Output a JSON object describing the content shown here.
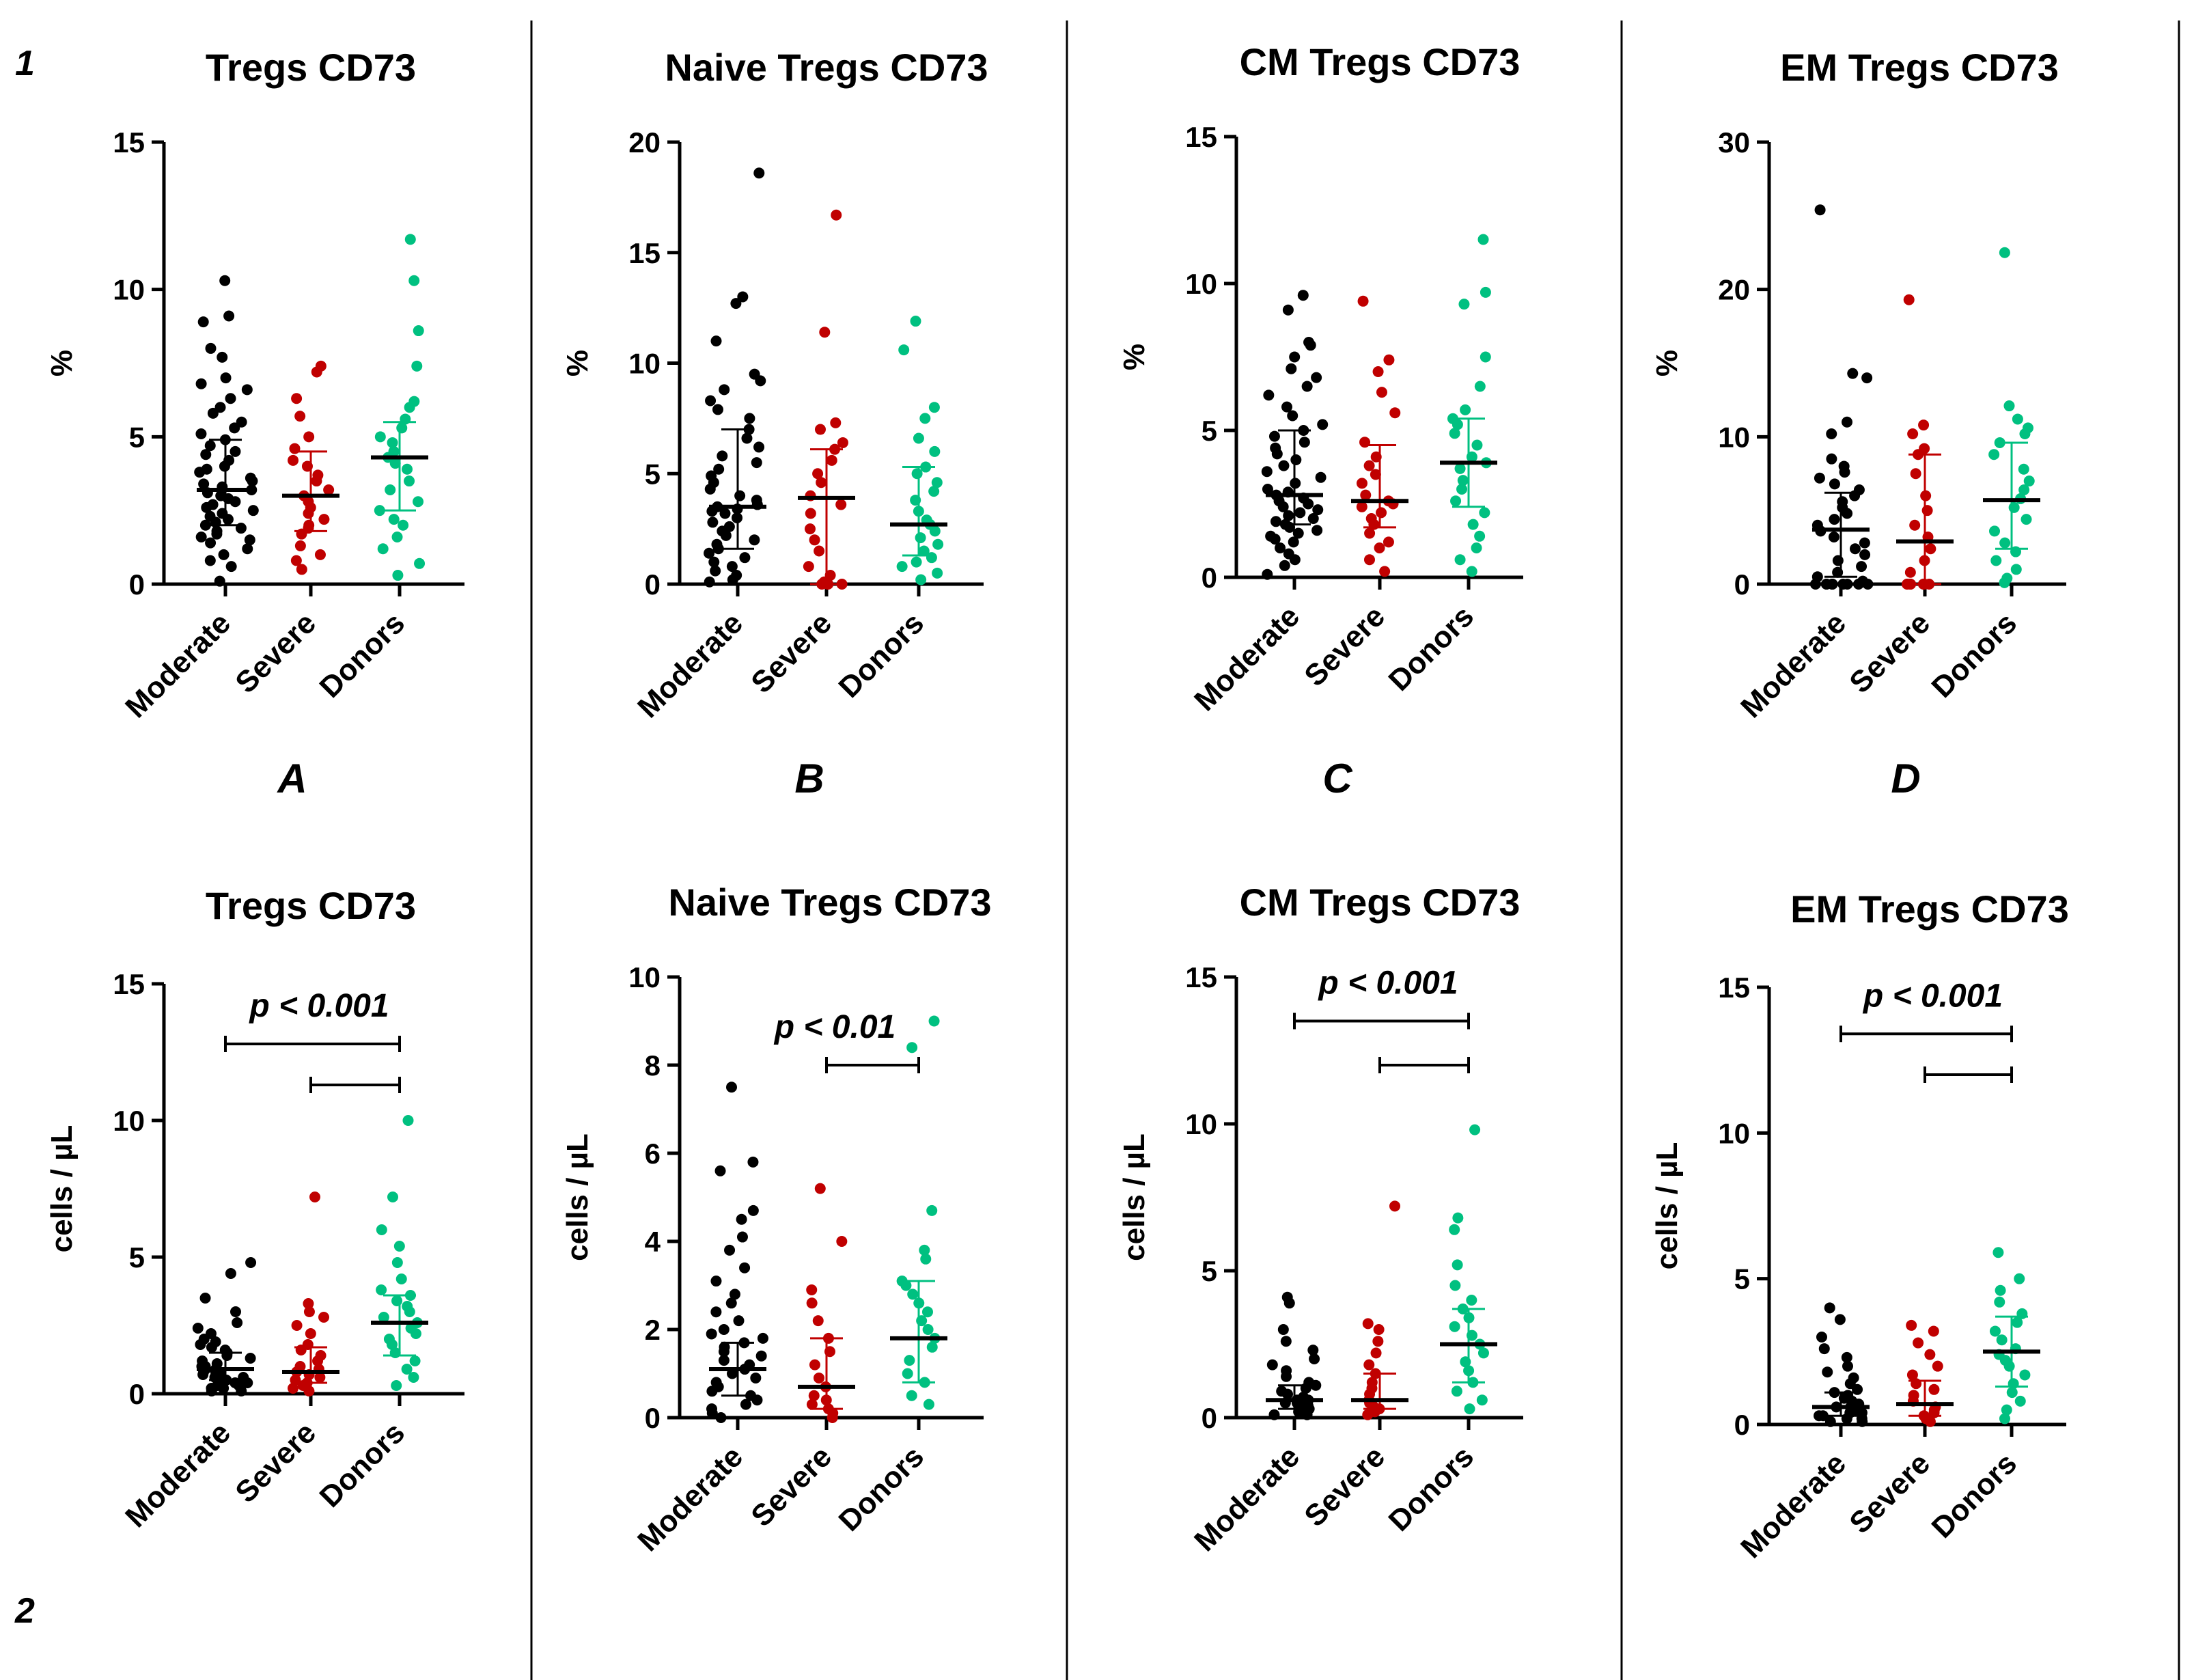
{
  "figure": {
    "row_labels": [
      "1",
      "2"
    ],
    "panel_letters": [
      "A",
      "B",
      "C",
      "D"
    ]
  },
  "colors": {
    "Moderate": "#000000",
    "Severe": "#c00000",
    "Donors": "#00c080",
    "axis": "#000000"
  },
  "chart_data": [
    {
      "type": "scatter",
      "title": "Tregs CD73",
      "ylabel": "%",
      "categories": [
        "Moderate",
        "Severe",
        "Donors"
      ],
      "ylim": [
        0,
        15
      ],
      "yticks": [
        0,
        5,
        10,
        15
      ],
      "series": [
        {
          "name": "Moderate",
          "median": 3.2,
          "q1": 2.0,
          "q3": 4.9,
          "values": [
            10.3,
            9.1,
            8.9,
            8.0,
            7.7,
            7.0,
            6.8,
            6.6,
            6.3,
            6.0,
            5.8,
            5.5,
            5.3,
            5.1,
            4.9,
            4.7,
            4.5,
            4.4,
            4.2,
            4.0,
            3.9,
            3.8,
            3.6,
            3.5,
            3.4,
            3.3,
            3.2,
            3.1,
            3.0,
            2.9,
            2.8,
            2.7,
            2.6,
            2.5,
            2.4,
            2.3,
            2.2,
            2.1,
            2.0,
            1.9,
            1.8,
            1.7,
            1.6,
            1.5,
            1.4,
            1.2,
            1.0,
            0.8,
            0.6,
            0.1
          ]
        },
        {
          "name": "Severe",
          "median": 3.0,
          "q1": 1.8,
          "q3": 4.5,
          "values": [
            7.4,
            7.2,
            6.3,
            5.7,
            5.0,
            4.6,
            4.2,
            4.0,
            3.7,
            3.5,
            3.2,
            3.0,
            2.8,
            2.6,
            2.4,
            2.2,
            2.0,
            1.9,
            1.7,
            1.3,
            1.0,
            0.8,
            0.5
          ]
        },
        {
          "name": "Donors",
          "median": 4.3,
          "q1": 2.5,
          "q3": 5.5,
          "values": [
            11.7,
            10.3,
            8.6,
            7.4,
            6.2,
            6.0,
            5.6,
            5.3,
            5.0,
            4.8,
            4.5,
            4.3,
            4.1,
            3.9,
            3.5,
            3.2,
            2.8,
            2.5,
            2.2,
            2.0,
            1.6,
            1.2,
            0.7,
            0.3
          ]
        }
      ],
      "annotation": {
        "text": "",
        "brackets": []
      }
    },
    {
      "type": "scatter",
      "title": "Naive Tregs CD73",
      "ylabel": "%",
      "categories": [
        "Moderate",
        "Severe",
        "Donors"
      ],
      "ylim": [
        0,
        20
      ],
      "yticks": [
        0,
        5,
        10,
        15,
        20
      ],
      "series": [
        {
          "name": "Moderate",
          "median": 3.5,
          "q1": 1.6,
          "q3": 7.0,
          "values": [
            18.6,
            13.0,
            12.7,
            11.0,
            9.5,
            9.2,
            8.8,
            8.3,
            7.9,
            7.5,
            7.0,
            6.6,
            6.2,
            5.8,
            5.5,
            5.2,
            4.9,
            4.6,
            4.3,
            4.0,
            3.8,
            3.6,
            3.5,
            3.4,
            3.3,
            3.2,
            3.0,
            2.8,
            2.6,
            2.4,
            2.2,
            2.0,
            1.8,
            1.6,
            1.4,
            1.2,
            1.0,
            0.8,
            0.6,
            0.4,
            0.2,
            0.1
          ]
        },
        {
          "name": "Severe",
          "median": 3.9,
          "q1": 0.0,
          "q3": 6.1,
          "values": [
            16.7,
            11.4,
            7.3,
            7.0,
            6.4,
            6.1,
            5.6,
            5.0,
            4.6,
            4.0,
            3.6,
            3.2,
            2.5,
            2.0,
            1.5,
            0.8,
            0.4,
            0.1,
            0.0,
            0.0,
            0.0,
            0.0
          ]
        },
        {
          "name": "Donors",
          "median": 2.7,
          "q1": 1.3,
          "q3": 5.3,
          "values": [
            11.9,
            10.6,
            8.0,
            7.5,
            6.6,
            6.0,
            5.3,
            5.0,
            4.6,
            4.2,
            3.8,
            3.3,
            2.9,
            2.7,
            2.4,
            2.1,
            1.8,
            1.5,
            1.2,
            1.0,
            0.8,
            0.5,
            0.2
          ]
        }
      ],
      "annotation": {
        "text": "",
        "brackets": []
      }
    },
    {
      "type": "scatter",
      "title": "CM Tregs CD73",
      "ylabel": "%",
      "categories": [
        "Moderate",
        "Severe",
        "Donors"
      ],
      "ylim": [
        0,
        15
      ],
      "yticks": [
        0,
        5,
        10,
        15
      ],
      "series": [
        {
          "name": "Moderate",
          "median": 2.8,
          "q1": 1.8,
          "q3": 5.0,
          "values": [
            9.6,
            9.1,
            8.0,
            7.9,
            7.5,
            7.1,
            6.8,
            6.5,
            6.2,
            5.8,
            5.5,
            5.2,
            5.0,
            4.8,
            4.6,
            4.4,
            4.2,
            4.0,
            3.8,
            3.6,
            3.4,
            3.2,
            3.0,
            2.9,
            2.8,
            2.7,
            2.6,
            2.5,
            2.4,
            2.3,
            2.2,
            2.1,
            2.0,
            1.9,
            1.8,
            1.7,
            1.6,
            1.5,
            1.4,
            1.3,
            1.2,
            1.0,
            0.8,
            0.6,
            0.4,
            0.1
          ]
        },
        {
          "name": "Severe",
          "median": 2.6,
          "q1": 1.7,
          "q3": 4.5,
          "values": [
            9.4,
            7.4,
            7.0,
            6.3,
            5.6,
            4.6,
            4.1,
            3.8,
            3.5,
            3.2,
            2.8,
            2.6,
            2.5,
            2.4,
            2.2,
            2.0,
            1.8,
            1.5,
            1.2,
            1.0,
            0.6,
            0.2
          ]
        },
        {
          "name": "Donors",
          "median": 3.9,
          "q1": 2.4,
          "q3": 5.4,
          "values": [
            11.5,
            9.7,
            9.3,
            7.5,
            6.5,
            5.7,
            5.4,
            5.2,
            4.9,
            4.5,
            4.1,
            3.9,
            3.7,
            3.3,
            3.0,
            2.6,
            2.2,
            1.8,
            1.4,
            1.0,
            0.6,
            0.2
          ]
        }
      ],
      "annotation": {
        "text": "",
        "brackets": []
      }
    },
    {
      "type": "scatter",
      "title": "EM Tregs CD73",
      "ylabel": "%",
      "categories": [
        "Moderate",
        "Severe",
        "Donors"
      ],
      "ylim": [
        0,
        30
      ],
      "yticks": [
        0,
        10,
        20,
        30
      ],
      "series": [
        {
          "name": "Moderate",
          "median": 3.7,
          "q1": 0.5,
          "q3": 6.2,
          "values": [
            25.4,
            14.3,
            14.0,
            11.0,
            10.2,
            8.5,
            8.0,
            7.6,
            7.2,
            6.8,
            6.4,
            6.0,
            5.6,
            5.2,
            4.8,
            4.4,
            4.0,
            3.6,
            3.2,
            2.8,
            2.4,
            2.0,
            1.6,
            1.2,
            0.8,
            0.5,
            0.2,
            0.0,
            0.0,
            0.0,
            0.0,
            0.0,
            0.0,
            0.0,
            0.0,
            0.0,
            0.0
          ]
        },
        {
          "name": "Severe",
          "median": 2.9,
          "q1": 0.0,
          "q3": 8.8,
          "values": [
            19.3,
            10.8,
            10.2,
            9.2,
            8.8,
            7.5,
            6.0,
            5.0,
            4.0,
            3.2,
            2.4,
            1.6,
            0.8,
            0.0,
            0.0,
            0.0,
            0.0,
            0.0,
            0.0,
            0.0
          ]
        },
        {
          "name": "Donors",
          "median": 5.7,
          "q1": 2.4,
          "q3": 9.6,
          "values": [
            22.5,
            12.1,
            11.2,
            10.6,
            10.2,
            9.6,
            8.8,
            7.8,
            7.0,
            6.4,
            5.8,
            5.2,
            4.4,
            3.6,
            2.8,
            2.2,
            1.6,
            1.0,
            0.4,
            0.1
          ]
        }
      ],
      "annotation": {
        "text": "",
        "brackets": []
      }
    },
    {
      "type": "scatter",
      "title": "Tregs CD73",
      "ylabel": "cells  /  µL",
      "categories": [
        "Moderate",
        "Severe",
        "Donors"
      ],
      "ylim": [
        0,
        15
      ],
      "yticks": [
        0,
        5,
        10,
        15
      ],
      "dotted_baseline": true,
      "series": [
        {
          "name": "Moderate",
          "median": 0.9,
          "q1": 0.5,
          "q3": 1.5,
          "values": [
            4.8,
            4.4,
            3.5,
            3.0,
            2.6,
            2.4,
            2.2,
            2.0,
            1.9,
            1.8,
            1.7,
            1.6,
            1.5,
            1.4,
            1.3,
            1.2,
            1.1,
            1.0,
            1.0,
            0.9,
            0.9,
            0.8,
            0.8,
            0.7,
            0.7,
            0.6,
            0.6,
            0.5,
            0.5,
            0.4,
            0.4,
            0.3,
            0.3,
            0.2,
            0.2,
            0.1,
            0.1
          ]
        },
        {
          "name": "Severe",
          "median": 0.8,
          "q1": 0.4,
          "q3": 1.7,
          "values": [
            7.2,
            3.3,
            3.0,
            2.8,
            2.5,
            2.2,
            1.8,
            1.6,
            1.4,
            1.2,
            1.0,
            0.9,
            0.8,
            0.7,
            0.6,
            0.5,
            0.4,
            0.3,
            0.2,
            0.1
          ]
        },
        {
          "name": "Donors",
          "median": 2.6,
          "q1": 1.4,
          "q3": 3.6,
          "values": [
            10.0,
            7.2,
            6.0,
            5.4,
            4.8,
            4.2,
            3.8,
            3.6,
            3.4,
            3.2,
            3.0,
            2.8,
            2.6,
            2.4,
            2.2,
            2.0,
            1.8,
            1.5,
            1.2,
            0.9,
            0.6,
            0.3
          ]
        }
      ],
      "annotation": {
        "text": "p < 0.001",
        "brackets": [
          {
            "from": "Moderate",
            "to": "Donors",
            "y": 12.8
          },
          {
            "from": "Severe",
            "to": "Donors",
            "y": 11.3
          }
        ]
      }
    },
    {
      "type": "scatter",
      "title": "Naive Tregs CD73",
      "ylabel": "cells  /  µL",
      "categories": [
        "Moderate",
        "Severe",
        "Donors"
      ],
      "ylim": [
        0,
        10
      ],
      "yticks": [
        0,
        2,
        4,
        6,
        8,
        10
      ],
      "series": [
        {
          "name": "Moderate",
          "median": 1.1,
          "q1": 0.5,
          "q3": 1.7,
          "values": [
            7.5,
            5.8,
            5.6,
            4.7,
            4.5,
            4.1,
            3.8,
            3.4,
            3.1,
            2.8,
            2.6,
            2.4,
            2.2,
            2.0,
            1.9,
            1.8,
            1.7,
            1.6,
            1.5,
            1.4,
            1.3,
            1.2,
            1.1,
            1.0,
            0.9,
            0.8,
            0.7,
            0.6,
            0.5,
            0.4,
            0.3,
            0.2,
            0.1,
            0.0
          ]
        },
        {
          "name": "Severe",
          "median": 0.7,
          "q1": 0.2,
          "q3": 1.8,
          "values": [
            5.2,
            4.0,
            2.9,
            2.6,
            2.2,
            1.8,
            1.5,
            1.2,
            0.9,
            0.7,
            0.5,
            0.4,
            0.3,
            0.2,
            0.1,
            0.0
          ]
        },
        {
          "name": "Donors",
          "median": 1.8,
          "q1": 0.8,
          "q3": 3.1,
          "values": [
            9.0,
            8.4,
            4.7,
            3.8,
            3.6,
            3.1,
            3.0,
            2.8,
            2.6,
            2.4,
            2.2,
            2.0,
            1.8,
            1.6,
            1.3,
            1.0,
            0.8,
            0.5,
            0.3
          ]
        }
      ],
      "annotation": {
        "text": "p < 0.01",
        "brackets": [
          {
            "from": "Severe",
            "to": "Donors",
            "y": 8.0
          }
        ]
      }
    },
    {
      "type": "scatter",
      "title": "CM Tregs CD73",
      "ylabel": "cells  /  µL",
      "categories": [
        "Moderate",
        "Severe",
        "Donors"
      ],
      "ylim": [
        0,
        15
      ],
      "yticks": [
        0,
        5,
        10,
        15
      ],
      "series": [
        {
          "name": "Moderate",
          "median": 0.6,
          "q1": 0.3,
          "q3": 1.1,
          "values": [
            4.1,
            3.9,
            3.0,
            2.6,
            2.3,
            2.0,
            1.8,
            1.6,
            1.4,
            1.2,
            1.1,
            1.0,
            0.9,
            0.8,
            0.7,
            0.6,
            0.6,
            0.5,
            0.5,
            0.4,
            0.4,
            0.3,
            0.3,
            0.2,
            0.2,
            0.1,
            0.1
          ]
        },
        {
          "name": "Severe",
          "median": 0.6,
          "q1": 0.3,
          "q3": 1.5,
          "values": [
            7.2,
            3.2,
            3.0,
            2.6,
            2.2,
            1.8,
            1.5,
            1.2,
            1.0,
            0.8,
            0.6,
            0.5,
            0.4,
            0.3,
            0.2,
            0.1
          ]
        },
        {
          "name": "Donors",
          "median": 2.5,
          "q1": 1.2,
          "q3": 3.7,
          "values": [
            9.8,
            6.8,
            6.4,
            5.2,
            4.5,
            4.0,
            3.7,
            3.4,
            3.1,
            2.8,
            2.5,
            2.2,
            1.9,
            1.6,
            1.2,
            0.9,
            0.6,
            0.3
          ]
        }
      ],
      "annotation": {
        "text": "p < 0.001",
        "brackets": [
          {
            "from": "Moderate",
            "to": "Donors",
            "y": 13.5
          },
          {
            "from": "Severe",
            "to": "Donors",
            "y": 12.0
          }
        ]
      }
    },
    {
      "type": "scatter",
      "title": "EM Tregs CD73",
      "ylabel": "cells  /  µL",
      "categories": [
        "Moderate",
        "Severe",
        "Donors"
      ],
      "ylim": [
        0,
        15
      ],
      "yticks": [
        0,
        5,
        10,
        15
      ],
      "series": [
        {
          "name": "Moderate",
          "median": 0.6,
          "q1": 0.3,
          "q3": 1.1,
          "values": [
            4.0,
            3.6,
            3.0,
            2.6,
            2.3,
            2.0,
            1.8,
            1.6,
            1.4,
            1.2,
            1.1,
            1.0,
            0.9,
            0.8,
            0.7,
            0.6,
            0.6,
            0.5,
            0.5,
            0.4,
            0.4,
            0.3,
            0.3,
            0.2,
            0.2,
            0.1,
            0.1
          ]
        },
        {
          "name": "Severe",
          "median": 0.7,
          "q1": 0.3,
          "q3": 1.5,
          "values": [
            3.4,
            3.2,
            2.8,
            2.4,
            2.0,
            1.7,
            1.4,
            1.2,
            1.0,
            0.8,
            0.6,
            0.5,
            0.4,
            0.3,
            0.2,
            0.1
          ]
        },
        {
          "name": "Donors",
          "median": 2.5,
          "q1": 1.3,
          "q3": 3.7,
          "values": [
            5.9,
            5.0,
            4.6,
            4.2,
            3.8,
            3.5,
            3.2,
            2.9,
            2.6,
            2.4,
            2.2,
            2.0,
            1.7,
            1.4,
            1.1,
            0.8,
            0.5,
            0.2
          ]
        }
      ],
      "annotation": {
        "text": "p < 0.001",
        "brackets": [
          {
            "from": "Moderate",
            "to": "Donors",
            "y": 13.4
          },
          {
            "from": "Severe",
            "to": "Donors",
            "y": 12.0
          }
        ]
      }
    }
  ]
}
